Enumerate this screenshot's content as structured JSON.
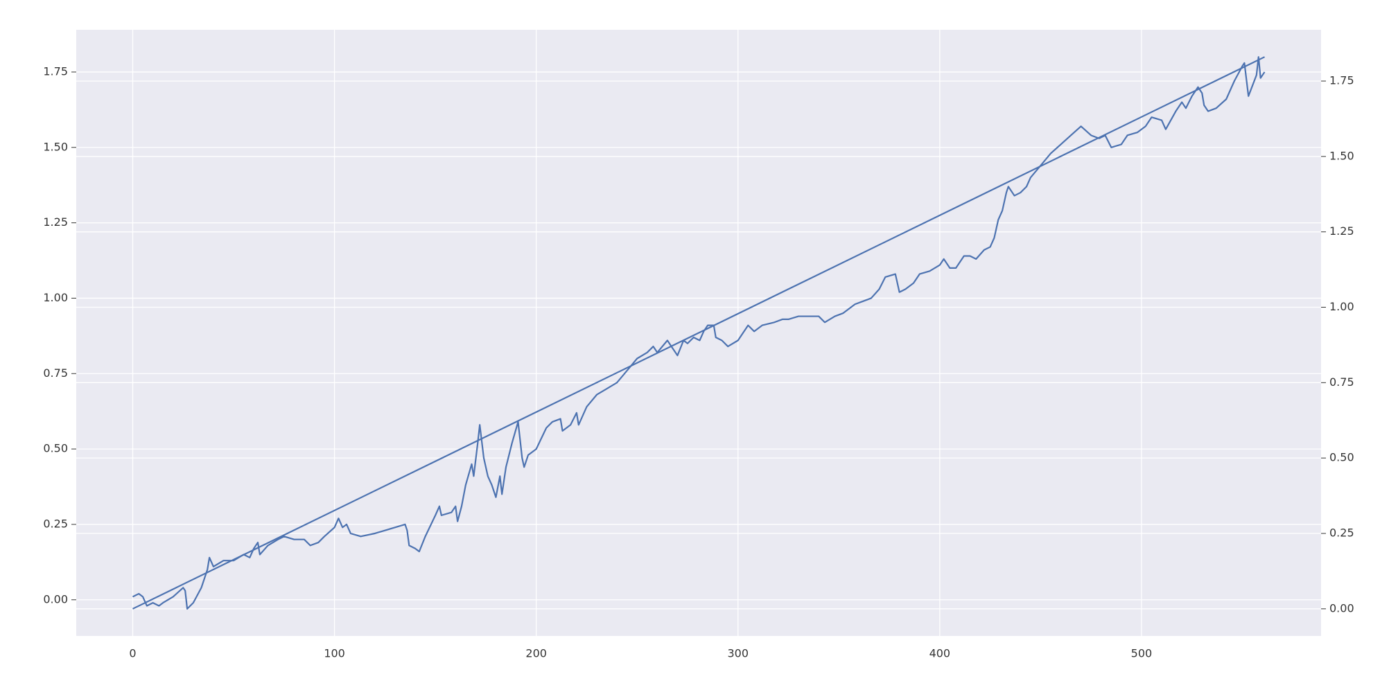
{
  "chart_data": {
    "type": "line",
    "xlim": [
      -28,
      589
    ],
    "xticks": [
      0,
      100,
      200,
      300,
      400,
      500
    ],
    "ylim": [
      -0.12,
      1.89
    ],
    "yticks": [
      {
        "value": 0,
        "label": "0.00"
      },
      {
        "value": 0.25,
        "label": "0.25"
      },
      {
        "value": 0.5,
        "label": "0.50"
      },
      {
        "value": 0.75,
        "label": "0.75"
      },
      {
        "value": 1,
        "label": "1.00"
      },
      {
        "value": 1.25,
        "label": "1.25"
      },
      {
        "value": 1.5,
        "label": "1.50"
      },
      {
        "value": 1.75,
        "label": "1.75"
      }
    ],
    "y2lim": [
      -0.09,
      1.92
    ],
    "y2ticks": [
      {
        "value": 0,
        "label": "0.00"
      },
      {
        "value": 0.25,
        "label": "0.25"
      },
      {
        "value": 0.5,
        "label": "0.50"
      },
      {
        "value": 0.75,
        "label": "0.75"
      },
      {
        "value": 1,
        "label": "1.00"
      },
      {
        "value": 1.25,
        "label": "1.25"
      },
      {
        "value": 1.5,
        "label": "1.50"
      },
      {
        "value": 1.75,
        "label": "1.75"
      }
    ],
    "grid": true,
    "series": [
      {
        "color": "#4c72b0",
        "x": [
          0,
          3,
          5,
          7,
          10,
          13,
          15,
          20,
          25,
          26,
          27,
          30,
          34,
          37,
          38,
          40,
          45,
          50,
          55,
          58,
          60,
          62,
          63,
          67,
          72,
          75,
          80,
          85,
          88,
          92,
          95,
          100,
          102,
          104,
          106,
          108,
          113,
          120,
          125,
          130,
          135,
          136,
          137,
          140,
          142,
          145,
          150,
          152,
          153,
          158,
          160,
          161,
          163,
          165,
          168,
          169,
          171,
          172,
          174,
          176,
          178,
          180,
          182,
          183,
          185,
          188,
          191,
          193,
          194,
          196,
          200,
          205,
          208,
          212,
          213,
          217,
          220,
          221,
          225,
          230,
          235,
          240,
          245,
          250,
          255,
          258,
          260,
          265,
          267,
          270,
          273,
          275,
          278,
          281,
          283,
          285,
          288,
          289,
          292,
          295,
          300,
          305,
          308,
          312,
          318,
          322,
          325,
          330,
          335,
          340,
          343,
          348,
          352,
          358,
          362,
          366,
          370,
          373,
          378,
          380,
          383,
          387,
          390,
          395,
          400,
          402,
          405,
          408,
          412,
          415,
          418,
          422,
          425,
          427,
          429,
          431,
          433,
          434,
          437,
          440,
          443,
          445,
          450,
          455,
          460,
          465,
          470,
          475,
          479,
          482,
          485,
          490,
          493,
          498,
          502,
          505,
          510,
          512,
          517,
          520,
          522,
          525,
          528,
          530,
          531,
          533,
          537,
          542,
          546,
          550,
          551,
          553,
          557,
          558,
          559,
          561
        ],
        "values": [
          0.01,
          0.02,
          0.01,
          -0.02,
          -0.01,
          -0.02,
          -0.01,
          0.01,
          0.04,
          0.03,
          -0.03,
          -0.01,
          0.04,
          0.1,
          0.14,
          0.11,
          0.13,
          0.13,
          0.15,
          0.14,
          0.17,
          0.19,
          0.15,
          0.18,
          0.2,
          0.21,
          0.2,
          0.2,
          0.18,
          0.19,
          0.21,
          0.24,
          0.27,
          0.24,
          0.25,
          0.22,
          0.21,
          0.22,
          0.23,
          0.24,
          0.25,
          0.23,
          0.18,
          0.17,
          0.16,
          0.21,
          0.28,
          0.31,
          0.28,
          0.29,
          0.31,
          0.26,
          0.31,
          0.38,
          0.45,
          0.41,
          0.52,
          0.58,
          0.47,
          0.41,
          0.38,
          0.34,
          0.41,
          0.35,
          0.44,
          0.52,
          0.59,
          0.47,
          0.44,
          0.48,
          0.5,
          0.57,
          0.59,
          0.6,
          0.56,
          0.58,
          0.62,
          0.58,
          0.64,
          0.68,
          0.7,
          0.72,
          0.76,
          0.8,
          0.82,
          0.84,
          0.82,
          0.86,
          0.84,
          0.81,
          0.86,
          0.85,
          0.87,
          0.86,
          0.89,
          0.91,
          0.91,
          0.87,
          0.86,
          0.84,
          0.86,
          0.91,
          0.89,
          0.91,
          0.92,
          0.93,
          0.93,
          0.94,
          0.94,
          0.94,
          0.92,
          0.94,
          0.95,
          0.98,
          0.99,
          1.0,
          1.03,
          1.07,
          1.08,
          1.02,
          1.03,
          1.05,
          1.08,
          1.09,
          1.11,
          1.13,
          1.1,
          1.1,
          1.14,
          1.14,
          1.13,
          1.16,
          1.17,
          1.2,
          1.26,
          1.29,
          1.35,
          1.37,
          1.34,
          1.35,
          1.37,
          1.4,
          1.44,
          1.48,
          1.51,
          1.54,
          1.57,
          1.54,
          1.53,
          1.54,
          1.5,
          1.51,
          1.54,
          1.55,
          1.57,
          1.6,
          1.59,
          1.56,
          1.62,
          1.65,
          1.63,
          1.67,
          1.7,
          1.68,
          1.64,
          1.62,
          1.63,
          1.66,
          1.72,
          1.77,
          1.78,
          1.67,
          1.74,
          1.8,
          1.73,
          1.75
        ]
      },
      {
        "color": "#4c72b0",
        "axis": "y2",
        "x": [
          0,
          561
        ],
        "values": [
          0,
          1.83
        ]
      }
    ]
  }
}
